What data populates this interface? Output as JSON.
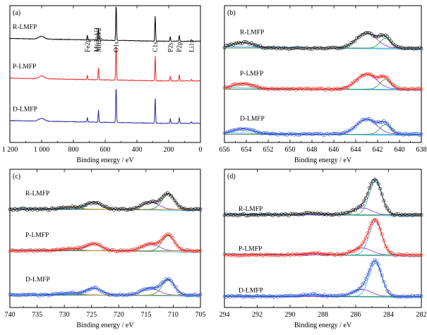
{
  "chart_data": [
    {
      "id": "a",
      "type": "line",
      "panel_label": "(a)",
      "xlabel": "Binding energy / eV",
      "ylabel": "",
      "xlim": [
        1200,
        0
      ],
      "xticks": [
        1200,
        1000,
        800,
        600,
        400,
        200,
        0
      ],
      "xtick_labels": [
        "1 200",
        "1 000",
        "800",
        "600",
        "400",
        "200",
        "0"
      ],
      "series": [
        {
          "name": "R-LMFP",
          "color": "#000000",
          "offset": 0.74
        },
        {
          "name": "P-LMFP",
          "color": "#e8231d",
          "offset": 0.45
        },
        {
          "name": "D-LMFP",
          "color": "#2a2aa0",
          "offset": 0.14
        }
      ],
      "peaks": [
        {
          "x": 1000,
          "h": 0.02
        },
        {
          "x": 712,
          "h": 0.035
        },
        {
          "x": 642,
          "h": 0.09
        },
        {
          "x": 531,
          "h": 0.28
        },
        {
          "x": 285,
          "h": 0.19
        },
        {
          "x": 190,
          "h": 0.035
        },
        {
          "x": 133,
          "h": 0.045
        },
        {
          "x": 56,
          "h": 0.012
        }
      ],
      "annotations": [
        {
          "text": "Fe2p",
          "x": 712
        },
        {
          "text": "Mn2p1/2",
          "x": 654
        },
        {
          "text": "Mn2p3/2",
          "x": 641
        },
        {
          "text": "O1s",
          "x": 531
        },
        {
          "text": "C1s",
          "x": 285
        },
        {
          "text": "P2s",
          "x": 190
        },
        {
          "text": "P2p",
          "x": 133
        },
        {
          "text": "Li1s",
          "x": 56
        }
      ]
    },
    {
      "id": "b",
      "type": "line",
      "panel_label": "(b)",
      "xlabel": "Binding energy / eV",
      "ylabel": "",
      "xlim": [
        656,
        638
      ],
      "xticks": [
        656,
        654,
        652,
        650,
        648,
        646,
        644,
        642,
        640,
        638
      ],
      "series": [
        {
          "name": "R-LMFP",
          "offset": 0.68
        },
        {
          "name": "P-LMFP",
          "offset": 0.38,
          "color": "#e8231d"
        },
        {
          "name": "D-LMFP",
          "offset": 0.05,
          "color": "#2a4fd0"
        }
      ],
      "components": [
        {
          "x": 654.3,
          "w": 1.4,
          "h": 0.04
        },
        {
          "x": 643.0,
          "w": 1.3,
          "h": 0.11
        },
        {
          "x": 641.3,
          "w": 0.7,
          "h": 0.07
        }
      ]
    },
    {
      "id": "c",
      "type": "line",
      "panel_label": "(c)",
      "xlabel": "Binding energy / eV",
      "ylabel": "",
      "xlim": [
        740,
        705
      ],
      "xticks": [
        740,
        735,
        730,
        725,
        720,
        715,
        710,
        705
      ],
      "series": [
        {
          "name": "R-LMFP",
          "offset": 0.7
        },
        {
          "name": "P-LMFP",
          "offset": 0.4,
          "color": "#e8231d"
        },
        {
          "name": "D-LMFP",
          "offset": 0.08,
          "color": "#2a4fd0"
        }
      ],
      "components": [
        {
          "x": 724.6,
          "w": 2.0,
          "h": 0.05
        },
        {
          "x": 714.2,
          "w": 2.2,
          "h": 0.05
        },
        {
          "x": 710.9,
          "w": 1.6,
          "h": 0.11
        },
        {
          "x": 729.0,
          "w": 2.5,
          "h": 0.015
        }
      ]
    },
    {
      "id": "d",
      "type": "line",
      "panel_label": "(d)",
      "xlabel": "Binding energy / eV",
      "ylabel": "",
      "xlim": [
        294,
        282
      ],
      "xticks": [
        294,
        292,
        290,
        288,
        286,
        284,
        282
      ],
      "series": [
        {
          "name": "R-LMFP",
          "offset": 0.66
        },
        {
          "name": "P-LMFP",
          "offset": 0.37,
          "color": "#e8231d"
        },
        {
          "name": "D-LMFP",
          "offset": 0.07,
          "color": "#2a4fd0"
        }
      ],
      "components": [
        {
          "x": 284.8,
          "w": 0.55,
          "h": 0.24
        },
        {
          "x": 285.6,
          "w": 0.8,
          "h": 0.05
        },
        {
          "x": 288.6,
          "w": 0.9,
          "h": 0.012
        }
      ]
    }
  ]
}
